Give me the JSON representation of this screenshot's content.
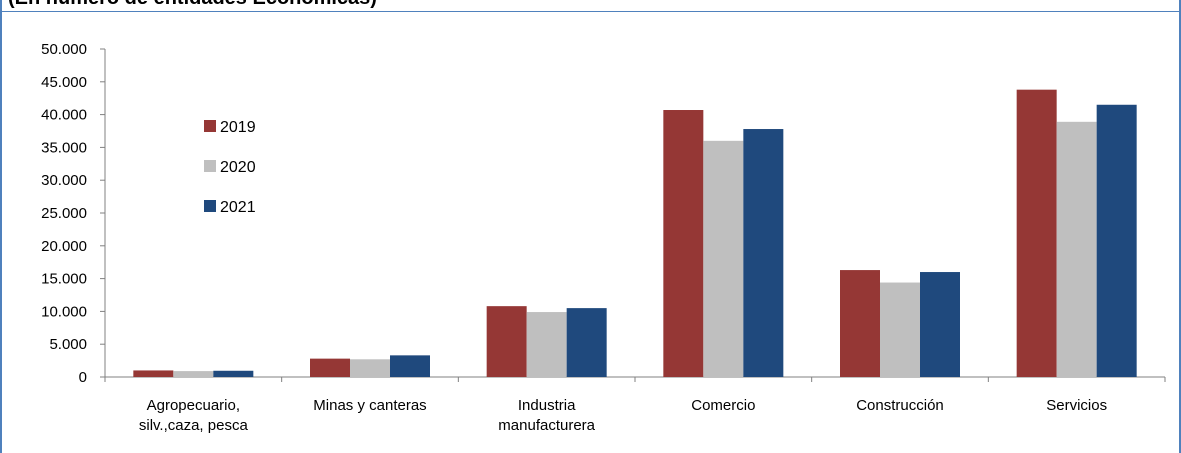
{
  "title": "(En número de entidades Económicas)",
  "chart_data": {
    "type": "bar",
    "categories": [
      [
        "Agropecuario,",
        "silv.,caza, pesca"
      ],
      [
        "Minas y canteras"
      ],
      [
        "Industria",
        "manufacturera"
      ],
      [
        "Comercio"
      ],
      [
        "Construcción"
      ],
      [
        "Servicios"
      ]
    ],
    "series": [
      {
        "name": "2019",
        "color": "#953735",
        "values": [
          1000,
          2800,
          10800,
          40700,
          16300,
          43800
        ]
      },
      {
        "name": "2020",
        "color": "#bfbfbf",
        "values": [
          900,
          2700,
          9900,
          36000,
          14400,
          38900
        ]
      },
      {
        "name": "2021",
        "color": "#1f497d",
        "values": [
          950,
          3300,
          10500,
          37800,
          16000,
          41500
        ]
      }
    ],
    "ylim": [
      0,
      50000
    ],
    "yticks": [
      0,
      5000,
      10000,
      15000,
      20000,
      25000,
      30000,
      35000,
      40000,
      45000,
      50000
    ],
    "ytick_labels": [
      "0",
      "5.000",
      "10.000",
      "15.000",
      "20.000",
      "25.000",
      "30.000",
      "35.000",
      "40.000",
      "45.000",
      "50.000"
    ],
    "legend_position": "upper-left",
    "grid": false
  }
}
